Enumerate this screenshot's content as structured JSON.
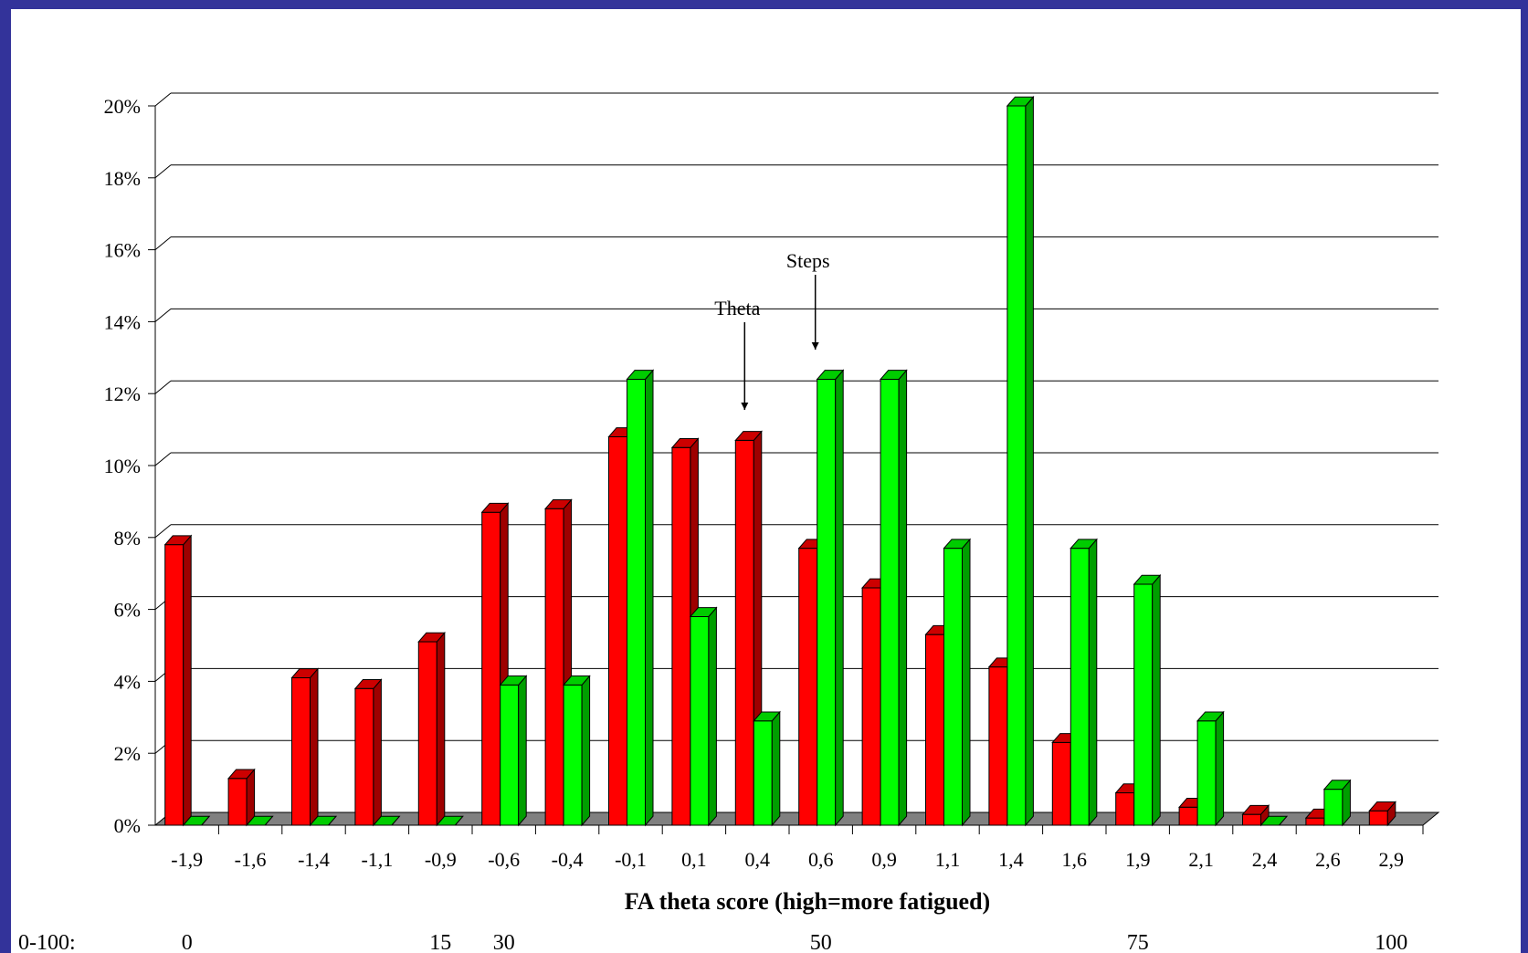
{
  "chart_data": {
    "type": "bar",
    "categories": [
      "-1,9",
      "-1,6",
      "-1,4",
      "-1,1",
      "-0,9",
      "-0,6",
      "-0,4",
      "-0,1",
      "0,1",
      "0,4",
      "0,6",
      "0,9",
      "1,1",
      "1,4",
      "1,6",
      "1,9",
      "2,1",
      "2,4",
      "2,6",
      "2,9"
    ],
    "series": [
      {
        "color": "#ff0000",
        "values": [
          7.8,
          1.3,
          4.1,
          3.8,
          5.1,
          8.7,
          8.8,
          10.8,
          10.5,
          10.7,
          7.7,
          6.6,
          5.3,
          4.4,
          2.3,
          0.9,
          0.5,
          0.3,
          0.2,
          0.4
        ]
      },
      {
        "color": "#00ff00",
        "values": [
          0,
          0,
          0,
          0,
          0,
          3.9,
          3.9,
          12.4,
          5.8,
          2.9,
          12.4,
          12.4,
          7.7,
          20.0,
          7.7,
          6.7,
          2.9,
          0,
          1.0,
          null
        ]
      }
    ],
    "ylim": [
      0,
      20
    ],
    "yticks": [
      "0%",
      "2%",
      "4%",
      "6%",
      "8%",
      "10%",
      "12%",
      "14%",
      "16%",
      "18%",
      "20%"
    ],
    "xlabel": "FA theta score (high=more fatigued)",
    "grid": true,
    "annotations": [
      {
        "text": "Theta",
        "category": "0,4"
      },
      {
        "text": "Steps",
        "category": "0,6"
      }
    ],
    "scale_row": {
      "prefix": "0-100:",
      "labels": [
        {
          "text": "0",
          "category": "-1,9"
        },
        {
          "text": "15",
          "category": "-0,9"
        },
        {
          "text": "30",
          "category": "-0,6"
        },
        {
          "text": "50",
          "category": "0,6"
        },
        {
          "text": "75",
          "category": "1,9"
        },
        {
          "text": "100",
          "category": "2,9"
        }
      ]
    }
  },
  "colors": {
    "frame": "#33339a",
    "floor": "#808080",
    "grid": "#000000"
  }
}
